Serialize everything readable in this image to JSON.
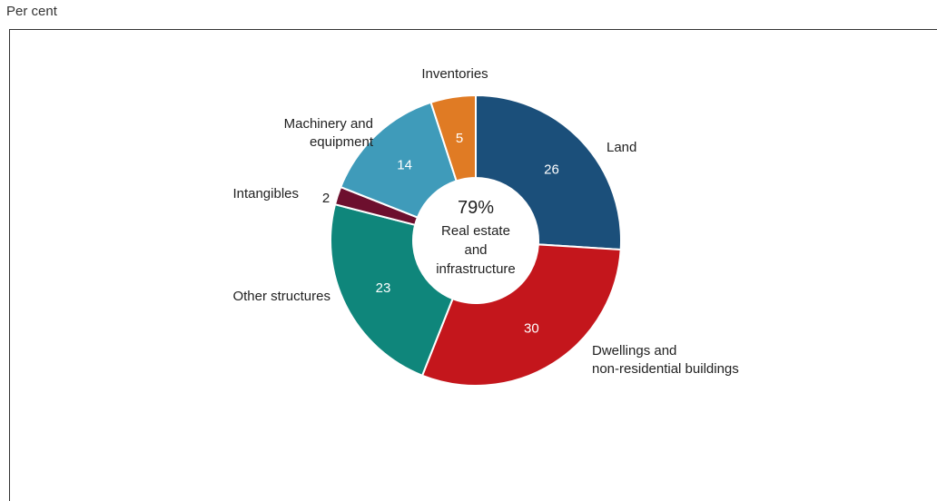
{
  "unit_label": "Per cent",
  "chart_data": {
    "type": "pie",
    "variant": "donut",
    "slices": [
      {
        "label": "Land",
        "value": 26,
        "color": "#1b4f7a",
        "text_color": "#ffffff"
      },
      {
        "label": "Dwellings and non-residential buildings",
        "label_lines": [
          "Dwellings and",
          "non-residential buildings"
        ],
        "value": 30,
        "color": "#c4161c",
        "text_color": "#ffffff"
      },
      {
        "label": "Other structures",
        "label_lines": [
          "Other structures"
        ],
        "value": 23,
        "color": "#0f867b",
        "text_color": "#ffffff"
      },
      {
        "label": "Intangibles",
        "label_lines": [
          "Intangibles"
        ],
        "value": 2,
        "color": "#6d0f2e",
        "text_color": "#222222"
      },
      {
        "label": "Machinery and equipment",
        "label_lines": [
          "Machinery and",
          "equipment"
        ],
        "value": 14,
        "color": "#3f9bba",
        "text_color": "#ffffff"
      },
      {
        "label": "Inventories",
        "label_lines": [
          "Inventories"
        ],
        "value": 5,
        "color": "#e07b24",
        "text_color": "#ffffff"
      }
    ],
    "center": {
      "value": "79%",
      "text_lines": [
        "Real estate",
        "and",
        "infrastructure"
      ]
    }
  }
}
